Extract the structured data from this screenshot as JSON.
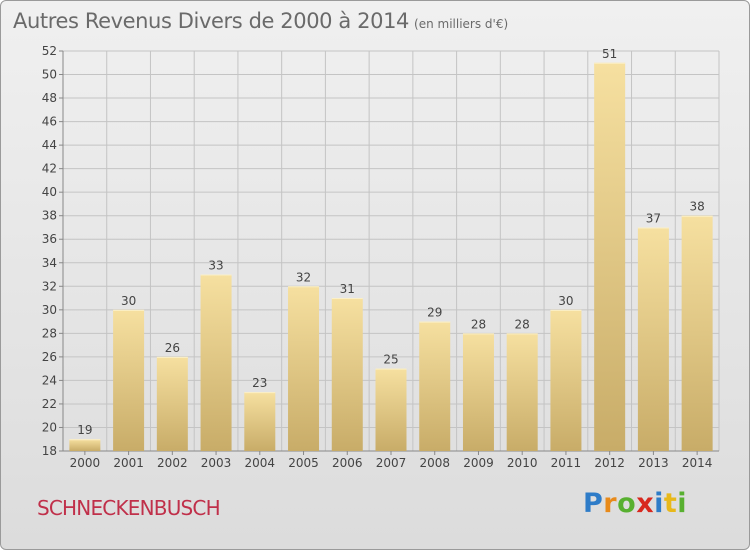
{
  "header": {
    "title": "Autres Revenus Divers de 2000 à 2014",
    "unit": "(en milliers d'€)"
  },
  "commune": "SCHNECKENBUSCH",
  "logo": {
    "letters": [
      "P",
      "r",
      "o",
      "x",
      "i",
      "t",
      "i"
    ],
    "colors": [
      "#2e7cc8",
      "#e88a1a",
      "#58b030",
      "#d8281e",
      "#2e7cc8",
      "#e8b81a",
      "#58b030"
    ]
  },
  "colors": {
    "bar_light": "#f6e0a0",
    "bar_dark": "#c8ac68",
    "grid": "#c4c4c4",
    "axis_text": "#444444"
  },
  "chart_data": {
    "type": "bar",
    "categories": [
      "2000",
      "2001",
      "2002",
      "2003",
      "2004",
      "2005",
      "2006",
      "2007",
      "2008",
      "2009",
      "2010",
      "2011",
      "2012",
      "2013",
      "2014"
    ],
    "values": [
      19,
      30,
      26,
      33,
      23,
      32,
      31,
      25,
      29,
      28,
      28,
      30,
      51,
      37,
      38
    ],
    "data_labels": [
      "19",
      "30",
      "26",
      "33",
      "23",
      "32",
      "31",
      "25",
      "29",
      "28",
      "28",
      "30",
      "51",
      "37",
      "38"
    ],
    "title": "Autres Revenus Divers de 2000 à 2014",
    "xlabel": "",
    "ylabel": "",
    "ylim": [
      18,
      52
    ],
    "yticks": [
      18,
      20,
      22,
      24,
      26,
      28,
      30,
      32,
      34,
      36,
      38,
      40,
      42,
      44,
      46,
      48,
      50,
      52
    ],
    "grid": true
  }
}
